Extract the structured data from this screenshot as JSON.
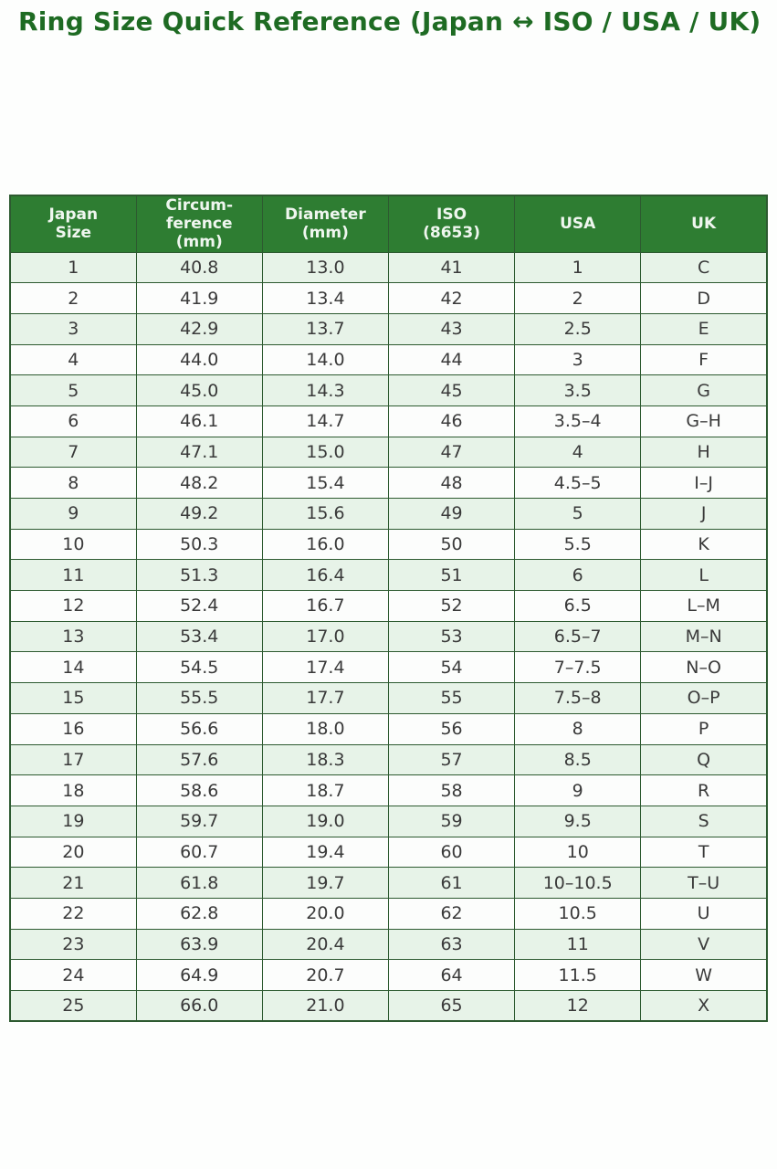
{
  "title": "Ring Size Quick Reference (Japan ↔ ISO / USA / UK)",
  "colors": {
    "title_green": "#1e6b23",
    "header_bg": "#2e7d32",
    "header_text": "#eff6ef",
    "row_alt_bg": "#e7f3e8",
    "row_bg": "#fcfdfc",
    "border": "#2d5a30",
    "cell_text": "#3a3a3a",
    "page_bg": "#fdfefd"
  },
  "chart_data": {
    "type": "table",
    "title": "Ring Size Quick Reference (Japan ↔ ISO / USA / UK)",
    "columns": [
      "Japan\nSize",
      "Circum-\nference\n(mm)",
      "Diameter\n(mm)",
      "ISO\n(8653)",
      "USA",
      "UK"
    ],
    "rows": [
      [
        "1",
        "40.8",
        "13.0",
        "41",
        "1",
        "C"
      ],
      [
        "2",
        "41.9",
        "13.4",
        "42",
        "2",
        "D"
      ],
      [
        "3",
        "42.9",
        "13.7",
        "43",
        "2.5",
        "E"
      ],
      [
        "4",
        "44.0",
        "14.0",
        "44",
        "3",
        "F"
      ],
      [
        "5",
        "45.0",
        "14.3",
        "45",
        "3.5",
        "G"
      ],
      [
        "6",
        "46.1",
        "14.7",
        "46",
        "3.5–4",
        "G–H"
      ],
      [
        "7",
        "47.1",
        "15.0",
        "47",
        "4",
        "H"
      ],
      [
        "8",
        "48.2",
        "15.4",
        "48",
        "4.5–5",
        "I–J"
      ],
      [
        "9",
        "49.2",
        "15.6",
        "49",
        "5",
        "J"
      ],
      [
        "10",
        "50.3",
        "16.0",
        "50",
        "5.5",
        "K"
      ],
      [
        "11",
        "51.3",
        "16.4",
        "51",
        "6",
        "L"
      ],
      [
        "12",
        "52.4",
        "16.7",
        "52",
        "6.5",
        "L–M"
      ],
      [
        "13",
        "53.4",
        "17.0",
        "53",
        "6.5–7",
        "M–N"
      ],
      [
        "14",
        "54.5",
        "17.4",
        "54",
        "7–7.5",
        "N–O"
      ],
      [
        "15",
        "55.5",
        "17.7",
        "55",
        "7.5–8",
        "O–P"
      ],
      [
        "16",
        "56.6",
        "18.0",
        "56",
        "8",
        "P"
      ],
      [
        "17",
        "57.6",
        "18.3",
        "57",
        "8.5",
        "Q"
      ],
      [
        "18",
        "58.6",
        "18.7",
        "58",
        "9",
        "R"
      ],
      [
        "19",
        "59.7",
        "19.0",
        "59",
        "9.5",
        "S"
      ],
      [
        "20",
        "60.7",
        "19.4",
        "60",
        "10",
        "T"
      ],
      [
        "21",
        "61.8",
        "19.7",
        "61",
        "10–10.5",
        "T–U"
      ],
      [
        "22",
        "62.8",
        "20.0",
        "62",
        "10.5",
        "U"
      ],
      [
        "23",
        "63.9",
        "20.4",
        "63",
        "11",
        "V"
      ],
      [
        "24",
        "64.9",
        "20.7",
        "64",
        "11.5",
        "W"
      ],
      [
        "25",
        "66.0",
        "21.0",
        "65",
        "12",
        "X"
      ]
    ]
  }
}
